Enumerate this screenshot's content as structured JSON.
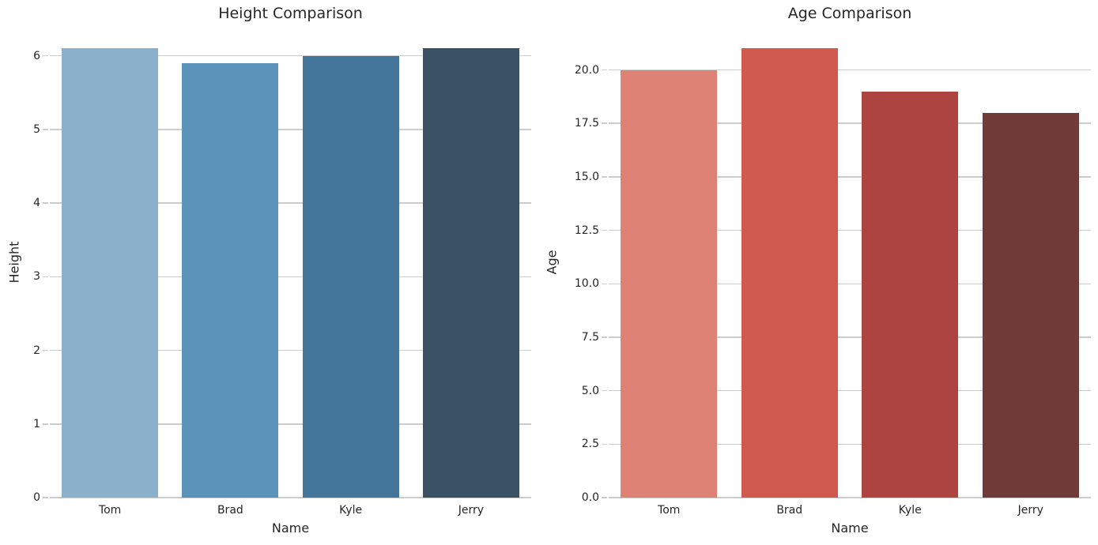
{
  "figure": {
    "background": "#ffffff",
    "text_color": "#262626",
    "grid_color": "#cccccc"
  },
  "chart_data": [
    {
      "type": "bar",
      "title": "Height Comparison",
      "xlabel": "Name",
      "ylabel": "Height",
      "categories": [
        "Tom",
        "Brad",
        "Kyle",
        "Jerry"
      ],
      "values": [
        6.1,
        5.9,
        6.0,
        6.1
      ],
      "bar_colors": [
        "#8ab0cb",
        "#5b93bb",
        "#44759a",
        "#3b5164"
      ],
      "ylim": [
        0,
        6.405
      ],
      "yticks": [
        0,
        1,
        2,
        3,
        4,
        5,
        6
      ],
      "ytick_labels": [
        "0",
        "1",
        "2",
        "3",
        "4",
        "5",
        "6"
      ],
      "grid": true,
      "grid_axis": "y",
      "legend": null,
      "bar_width_fraction": 0.8
    },
    {
      "type": "bar",
      "title": "Age Comparison",
      "xlabel": "Name",
      "ylabel": "Age",
      "categories": [
        "Tom",
        "Brad",
        "Kyle",
        "Jerry"
      ],
      "values": [
        20,
        21,
        19,
        18
      ],
      "bar_colors": [
        "#dd8274",
        "#d05a50",
        "#ad4440",
        "#703b38"
      ],
      "ylim": [
        0,
        22.05
      ],
      "yticks": [
        0,
        2.5,
        5,
        7.5,
        10,
        12.5,
        15,
        17.5,
        20
      ],
      "ytick_labels": [
        "0.0",
        "2.5",
        "5.0",
        "7.5",
        "10.0",
        "12.5",
        "15.0",
        "17.5",
        "20.0"
      ],
      "grid": true,
      "grid_axis": "y",
      "legend": null,
      "bar_width_fraction": 0.8
    }
  ]
}
